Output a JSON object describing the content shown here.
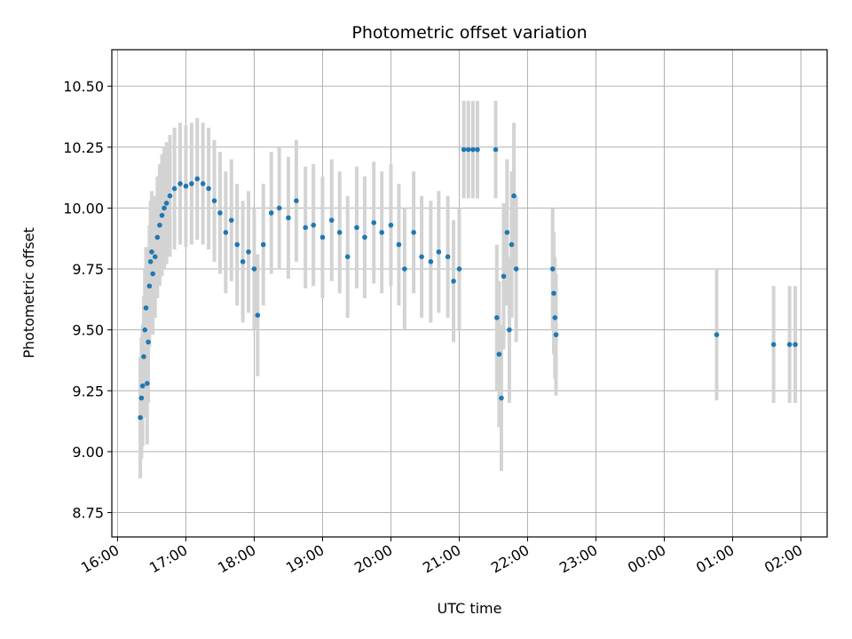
{
  "chart_data": {
    "type": "scatter",
    "title": "Photometric offset variation",
    "xlabel": "UTC time",
    "ylabel": "Photometric offset",
    "x_ticks": [
      "16:00",
      "17:00",
      "18:00",
      "19:00",
      "20:00",
      "21:00",
      "22:00",
      "23:00",
      "00:00",
      "01:00",
      "02:00"
    ],
    "y_ticks": [
      "8.75",
      "9.00",
      "9.25",
      "9.50",
      "9.75",
      "10.00",
      "10.25",
      "10.50"
    ],
    "xlim": [
      "15:55",
      "02:23"
    ],
    "ylim": [
      8.65,
      10.65
    ],
    "grid": true,
    "colors": {
      "points": "#1f77b4",
      "errorbars": "#d3d3d3",
      "grid": "#b0b0b0"
    },
    "series": [
      {
        "points": [
          {
            "x": "16:20",
            "y": 9.14,
            "err": 0.25
          },
          {
            "x": "16:21",
            "y": 9.22,
            "err": 0.25
          },
          {
            "x": "16:22",
            "y": 9.27,
            "err": 0.25
          },
          {
            "x": "16:23",
            "y": 9.39,
            "err": 0.25
          },
          {
            "x": "16:24",
            "y": 9.5,
            "err": 0.25
          },
          {
            "x": "16:25",
            "y": 9.59,
            "err": 0.25
          },
          {
            "x": "16:26",
            "y": 9.28,
            "err": 0.25
          },
          {
            "x": "16:27",
            "y": 9.45,
            "err": 0.25
          },
          {
            "x": "16:28",
            "y": 9.68,
            "err": 0.25
          },
          {
            "x": "16:29",
            "y": 9.78,
            "err": 0.25
          },
          {
            "x": "16:30",
            "y": 9.82,
            "err": 0.25
          },
          {
            "x": "16:31",
            "y": 9.73,
            "err": 0.25
          },
          {
            "x": "16:33",
            "y": 9.8,
            "err": 0.25
          },
          {
            "x": "16:35",
            "y": 9.88,
            "err": 0.25
          },
          {
            "x": "16:37",
            "y": 9.93,
            "err": 0.25
          },
          {
            "x": "16:39",
            "y": 9.97,
            "err": 0.25
          },
          {
            "x": "16:41",
            "y": 10.0,
            "err": 0.25
          },
          {
            "x": "16:43",
            "y": 10.02,
            "err": 0.25
          },
          {
            "x": "16:46",
            "y": 10.05,
            "err": 0.25
          },
          {
            "x": "16:50",
            "y": 10.08,
            "err": 0.25
          },
          {
            "x": "16:55",
            "y": 10.1,
            "err": 0.25
          },
          {
            "x": "17:00",
            "y": 10.09,
            "err": 0.25
          },
          {
            "x": "17:05",
            "y": 10.1,
            "err": 0.25
          },
          {
            "x": "17:10",
            "y": 10.12,
            "err": 0.25
          },
          {
            "x": "17:15",
            "y": 10.1,
            "err": 0.25
          },
          {
            "x": "17:20",
            "y": 10.08,
            "err": 0.25
          },
          {
            "x": "17:25",
            "y": 10.03,
            "err": 0.25
          },
          {
            "x": "17:30",
            "y": 9.98,
            "err": 0.25
          },
          {
            "x": "17:35",
            "y": 9.9,
            "err": 0.25
          },
          {
            "x": "17:40",
            "y": 9.95,
            "err": 0.25
          },
          {
            "x": "17:45",
            "y": 9.85,
            "err": 0.25
          },
          {
            "x": "17:50",
            "y": 9.78,
            "err": 0.25
          },
          {
            "x": "17:55",
            "y": 9.82,
            "err": 0.25
          },
          {
            "x": "18:00",
            "y": 9.75,
            "err": 0.25
          },
          {
            "x": "18:03",
            "y": 9.56,
            "err": 0.25
          },
          {
            "x": "18:08",
            "y": 9.85,
            "err": 0.25
          },
          {
            "x": "18:15",
            "y": 9.98,
            "err": 0.25
          },
          {
            "x": "18:22",
            "y": 10.0,
            "err": 0.25
          },
          {
            "x": "18:30",
            "y": 9.96,
            "err": 0.25
          },
          {
            "x": "18:37",
            "y": 10.03,
            "err": 0.25
          },
          {
            "x": "18:45",
            "y": 9.92,
            "err": 0.25
          },
          {
            "x": "18:52",
            "y": 9.93,
            "err": 0.25
          },
          {
            "x": "19:00",
            "y": 9.88,
            "err": 0.25
          },
          {
            "x": "19:08",
            "y": 9.95,
            "err": 0.25
          },
          {
            "x": "19:15",
            "y": 9.9,
            "err": 0.25
          },
          {
            "x": "19:22",
            "y": 9.8,
            "err": 0.25
          },
          {
            "x": "19:30",
            "y": 9.92,
            "err": 0.25
          },
          {
            "x": "19:37",
            "y": 9.88,
            "err": 0.25
          },
          {
            "x": "19:45",
            "y": 9.94,
            "err": 0.25
          },
          {
            "x": "19:52",
            "y": 9.9,
            "err": 0.25
          },
          {
            "x": "20:00",
            "y": 9.93,
            "err": 0.25
          },
          {
            "x": "20:07",
            "y": 9.85,
            "err": 0.25
          },
          {
            "x": "20:12",
            "y": 9.75,
            "err": 0.25
          },
          {
            "x": "20:20",
            "y": 9.9,
            "err": 0.25
          },
          {
            "x": "20:27",
            "y": 9.8,
            "err": 0.25
          },
          {
            "x": "20:35",
            "y": 9.78,
            "err": 0.25
          },
          {
            "x": "20:42",
            "y": 9.82,
            "err": 0.25
          },
          {
            "x": "20:50",
            "y": 9.8,
            "err": 0.25
          },
          {
            "x": "20:55",
            "y": 9.7,
            "err": 0.25
          },
          {
            "x": "21:00",
            "y": 9.75,
            "err": 0.25
          },
          {
            "x": "21:04",
            "y": 10.24,
            "err": 0.2
          },
          {
            "x": "21:08",
            "y": 10.24,
            "err": 0.2
          },
          {
            "x": "21:12",
            "y": 10.24,
            "err": 0.2
          },
          {
            "x": "21:16",
            "y": 10.24,
            "err": 0.2
          },
          {
            "x": "21:32",
            "y": 10.24,
            "err": 0.2
          },
          {
            "x": "21:33",
            "y": 9.55,
            "err": 0.3
          },
          {
            "x": "21:35",
            "y": 9.4,
            "err": 0.3
          },
          {
            "x": "21:37",
            "y": 9.22,
            "err": 0.3
          },
          {
            "x": "21:39",
            "y": 9.72,
            "err": 0.3
          },
          {
            "x": "21:42",
            "y": 9.9,
            "err": 0.3
          },
          {
            "x": "21:44",
            "y": 9.5,
            "err": 0.3
          },
          {
            "x": "21:46",
            "y": 9.85,
            "err": 0.3
          },
          {
            "x": "21:48",
            "y": 10.05,
            "err": 0.3
          },
          {
            "x": "21:50",
            "y": 9.75,
            "err": 0.3
          },
          {
            "x": "22:22",
            "y": 9.75,
            "err": 0.25
          },
          {
            "x": "22:23",
            "y": 9.65,
            "err": 0.25
          },
          {
            "x": "22:24",
            "y": 9.55,
            "err": 0.25
          },
          {
            "x": "22:25",
            "y": 9.48,
            "err": 0.25
          },
          {
            "x": "00:46",
            "y": 9.48,
            "err": 0.27
          },
          {
            "x": "01:36",
            "y": 9.44,
            "err": 0.24
          },
          {
            "x": "01:50",
            "y": 9.44,
            "err": 0.24
          },
          {
            "x": "01:55",
            "y": 9.44,
            "err": 0.24
          }
        ]
      }
    ]
  }
}
